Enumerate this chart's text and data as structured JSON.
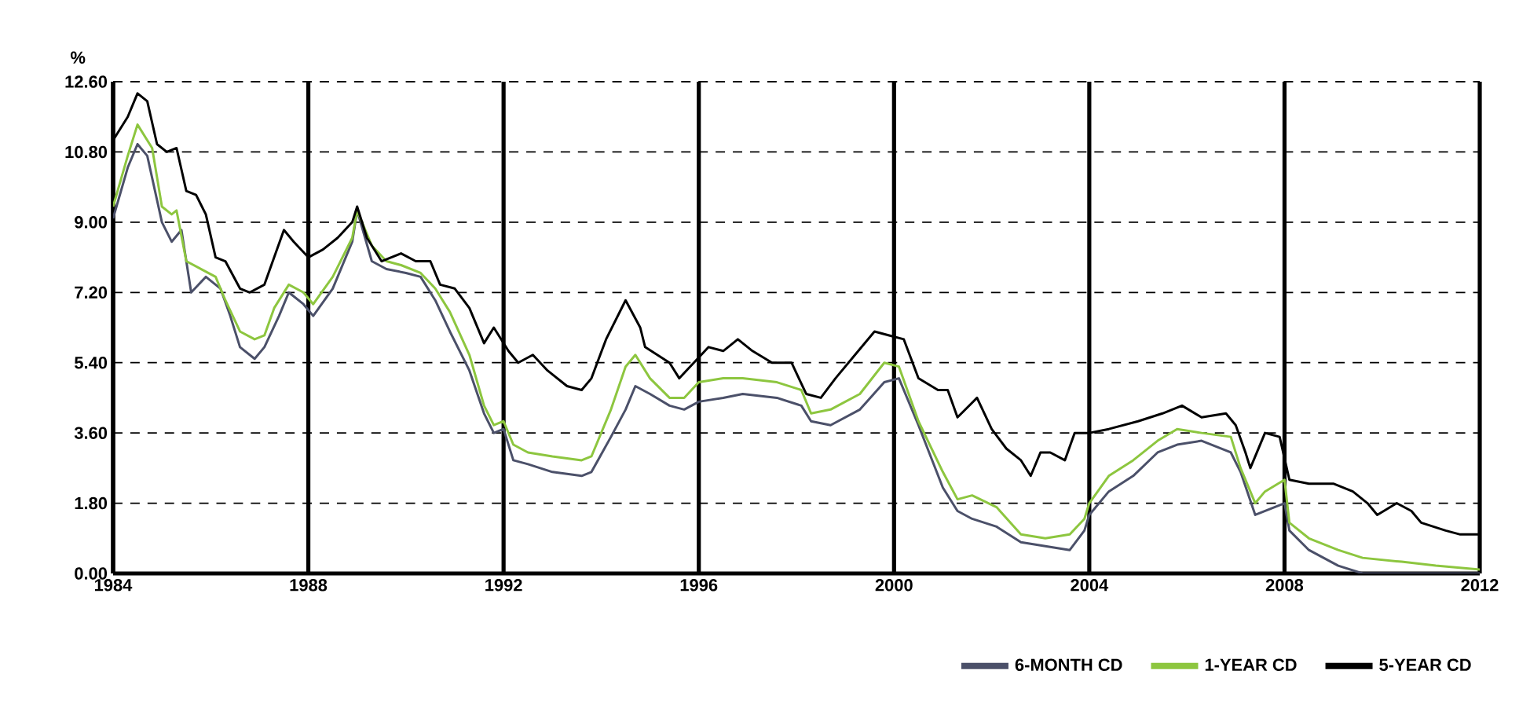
{
  "chart_data": {
    "type": "line",
    "ylabel": "%",
    "xlim": [
      1984,
      2012
    ],
    "xticks": [
      1984,
      1988,
      1992,
      1996,
      2000,
      2004,
      2008,
      2012
    ],
    "ylim": [
      0,
      12.6
    ],
    "yticks": [
      {
        "value": 0,
        "label": "0.00"
      },
      {
        "value": 1.8,
        "label": "1.80"
      },
      {
        "value": 3.6,
        "label": "3.60"
      },
      {
        "value": 5.4,
        "label": "5.40"
      },
      {
        "value": 7.2,
        "label": "7.20"
      },
      {
        "value": 9.0,
        "label": "9.00"
      },
      {
        "value": 10.8,
        "label": "10.80"
      },
      {
        "value": 12.6,
        "label": "12.60"
      }
    ],
    "grid": true,
    "legend": "bottom right",
    "marker": "none",
    "line_style": "solid",
    "series": [
      {
        "name": "6-MONTH CD",
        "color": "#4b5069",
        "x": [
          1984.0,
          1984.3,
          1984.5,
          1984.7,
          1985.0,
          1985.2,
          1985.4,
          1985.6,
          1985.9,
          1986.2,
          1986.4,
          1986.6,
          1986.9,
          1987.1,
          1987.4,
          1987.6,
          1987.9,
          1988.1,
          1988.5,
          1988.9,
          1989.0,
          1989.3,
          1989.6,
          1990.0,
          1990.3,
          1990.6,
          1990.9,
          1991.3,
          1991.6,
          1991.8,
          1992.0,
          1992.2,
          1992.5,
          1993.0,
          1993.6,
          1993.8,
          1994.2,
          1994.5,
          1994.7,
          1995.0,
          1995.4,
          1995.7,
          1996.0,
          1996.5,
          1996.9,
          1997.6,
          1998.1,
          1998.3,
          1998.7,
          1999.3,
          1999.8,
          2000.1,
          2000.5,
          2001.0,
          2001.3,
          2001.6,
          2002.1,
          2002.6,
          2003.1,
          2003.6,
          2003.9,
          2004.0,
          2004.4,
          2004.9,
          2005.4,
          2005.8,
          2006.3,
          2006.9,
          2007.1,
          2007.4,
          2007.6,
          2008.0,
          2008.1,
          2008.5,
          2009.1,
          2009.6,
          2010.4,
          2011.1,
          2012.0
        ],
        "values": [
          9.1,
          10.4,
          11.0,
          10.7,
          9.0,
          8.5,
          8.8,
          7.2,
          7.6,
          7.3,
          6.6,
          5.8,
          5.5,
          5.8,
          6.6,
          7.2,
          6.9,
          6.6,
          7.3,
          8.5,
          9.3,
          8.0,
          7.8,
          7.7,
          7.6,
          7.0,
          6.2,
          5.2,
          4.1,
          3.6,
          3.7,
          2.9,
          2.8,
          2.6,
          2.5,
          2.6,
          3.5,
          4.2,
          4.8,
          4.6,
          4.3,
          4.2,
          4.4,
          4.5,
          4.6,
          4.5,
          4.3,
          3.9,
          3.8,
          4.2,
          4.9,
          5.0,
          3.8,
          2.2,
          1.6,
          1.4,
          1.2,
          0.8,
          0.7,
          0.6,
          1.1,
          1.5,
          2.1,
          2.5,
          3.1,
          3.3,
          3.4,
          3.1,
          2.6,
          1.5,
          1.6,
          1.8,
          1.1,
          0.6,
          0.2,
          0.0,
          0.0,
          0.0,
          0.0
        ]
      },
      {
        "name": "1-YEAR CD",
        "color": "#8dc63f",
        "x": [
          1984.0,
          1984.3,
          1984.5,
          1984.8,
          1985.0,
          1985.2,
          1985.3,
          1985.5,
          1985.8,
          1986.1,
          1986.3,
          1986.6,
          1986.9,
          1987.1,
          1987.3,
          1987.6,
          1987.9,
          1988.1,
          1988.5,
          1988.9,
          1989.0,
          1989.3,
          1989.6,
          1989.9,
          1990.3,
          1990.6,
          1990.9,
          1991.3,
          1991.6,
          1991.8,
          1992.0,
          1992.2,
          1992.5,
          1993.0,
          1993.6,
          1993.8,
          1994.2,
          1994.5,
          1994.7,
          1995.0,
          1995.4,
          1995.7,
          1996.0,
          1996.5,
          1996.9,
          1997.6,
          1998.1,
          1998.3,
          1998.7,
          1999.3,
          1999.8,
          2000.1,
          2000.5,
          2001.0,
          2001.3,
          2001.6,
          2002.1,
          2002.6,
          2003.1,
          2003.6,
          2003.9,
          2004.0,
          2004.4,
          2004.9,
          2005.4,
          2005.8,
          2006.3,
          2006.9,
          2007.1,
          2007.4,
          2007.6,
          2008.0,
          2008.1,
          2008.5,
          2009.1,
          2009.6,
          2010.4,
          2011.1,
          2012.0
        ],
        "values": [
          9.4,
          10.7,
          11.5,
          10.9,
          9.4,
          9.2,
          9.3,
          8.0,
          7.8,
          7.6,
          7.0,
          6.2,
          6.0,
          6.1,
          6.8,
          7.4,
          7.2,
          6.9,
          7.6,
          8.6,
          9.3,
          8.4,
          8.0,
          7.9,
          7.7,
          7.3,
          6.7,
          5.6,
          4.3,
          3.8,
          3.9,
          3.3,
          3.1,
          3.0,
          2.9,
          3.0,
          4.2,
          5.3,
          5.6,
          5.0,
          4.5,
          4.5,
          4.9,
          5.0,
          5.0,
          4.9,
          4.7,
          4.1,
          4.2,
          4.6,
          5.4,
          5.3,
          3.9,
          2.6,
          1.9,
          2.0,
          1.7,
          1.0,
          0.9,
          1.0,
          1.4,
          1.8,
          2.5,
          2.9,
          3.4,
          3.7,
          3.6,
          3.5,
          2.7,
          1.8,
          2.1,
          2.4,
          1.3,
          0.9,
          0.6,
          0.4,
          0.3,
          0.2,
          0.1
        ]
      },
      {
        "name": "5-YEAR CD",
        "color": "#000000",
        "x": [
          1984.0,
          1984.3,
          1984.5,
          1984.7,
          1984.9,
          1985.1,
          1985.3,
          1985.5,
          1985.7,
          1985.9,
          1986.1,
          1986.3,
          1986.6,
          1986.8,
          1987.1,
          1987.3,
          1987.5,
          1987.7,
          1988.0,
          1988.3,
          1988.6,
          1988.9,
          1989.0,
          1989.2,
          1989.5,
          1989.9,
          1990.2,
          1990.5,
          1990.7,
          1991.0,
          1991.3,
          1991.6,
          1991.8,
          1992.1,
          1992.3,
          1992.6,
          1992.9,
          1993.3,
          1993.6,
          1993.8,
          1994.1,
          1994.5,
          1994.8,
          1994.9,
          1995.4,
          1995.6,
          1995.9,
          1996.2,
          1996.5,
          1996.8,
          1997.1,
          1997.5,
          1997.9,
          1998.2,
          1998.5,
          1998.8,
          1999.2,
          1999.6,
          1999.9,
          2000.2,
          2000.5,
          2000.9,
          2001.1,
          2001.3,
          2001.7,
          2002.0,
          2002.3,
          2002.6,
          2002.8,
          2003.0,
          2003.2,
          2003.5,
          2003.7,
          2004.0,
          2004.4,
          2005.0,
          2005.5,
          2005.9,
          2006.3,
          2006.8,
          2007.0,
          2007.2,
          2007.3,
          2007.6,
          2007.9,
          2008.1,
          2008.5,
          2009.0,
          2009.4,
          2009.7,
          2009.9,
          2010.3,
          2010.6,
          2010.8,
          2011.3,
          2011.6,
          2012.0
        ],
        "values": [
          11.1,
          11.7,
          12.3,
          12.1,
          11.0,
          10.8,
          10.9,
          9.8,
          9.7,
          9.2,
          8.1,
          8.0,
          7.3,
          7.2,
          7.4,
          8.1,
          8.8,
          8.5,
          8.1,
          8.3,
          8.6,
          9.0,
          9.4,
          8.6,
          8.0,
          8.2,
          8.0,
          8.0,
          7.4,
          7.3,
          6.8,
          5.9,
          6.3,
          5.7,
          5.4,
          5.6,
          5.2,
          4.8,
          4.7,
          5.0,
          6.0,
          7.0,
          6.3,
          5.8,
          5.4,
          5.0,
          5.4,
          5.8,
          5.7,
          6.0,
          5.7,
          5.4,
          5.4,
          4.6,
          4.5,
          5.0,
          5.6,
          6.2,
          6.1,
          6.0,
          5.0,
          4.7,
          4.7,
          4.0,
          4.5,
          3.7,
          3.2,
          2.9,
          2.5,
          3.1,
          3.1,
          2.9,
          3.6,
          3.6,
          3.7,
          3.9,
          4.1,
          4.3,
          4.0,
          4.1,
          3.8,
          3.1,
          2.7,
          3.6,
          3.5,
          2.4,
          2.3,
          2.3,
          2.1,
          1.8,
          1.5,
          1.8,
          1.6,
          1.3,
          1.1,
          1.0,
          1.0
        ]
      }
    ]
  }
}
